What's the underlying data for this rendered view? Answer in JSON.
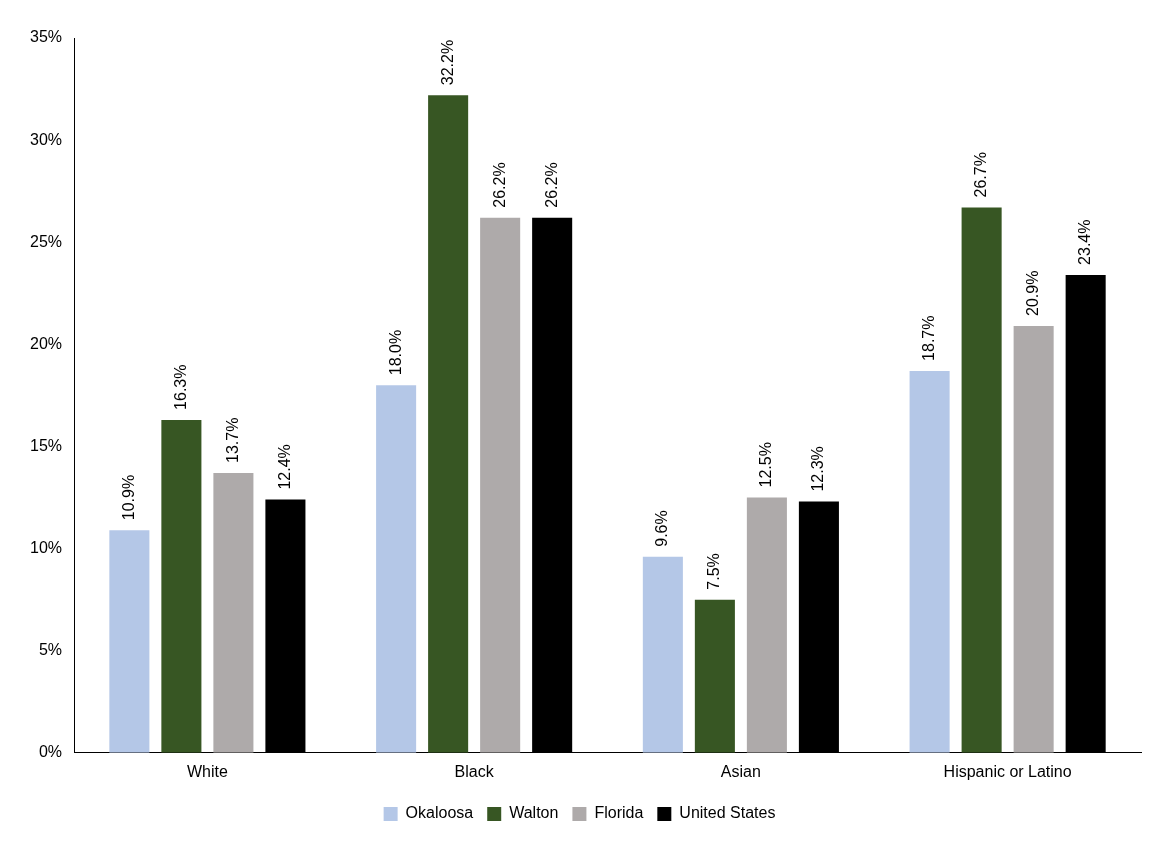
{
  "chart_data": {
    "type": "bar",
    "categories": [
      "White",
      "Black",
      "Asian",
      "Hispanic or Latino"
    ],
    "series": [
      {
        "name": "Okaloosa",
        "color": "#b4c7e7",
        "values": [
          10.9,
          18.0,
          9.6,
          18.7
        ],
        "value_labels": [
          "10.9%",
          "18.0%",
          "9.6%",
          "18.7%"
        ]
      },
      {
        "name": "Walton",
        "color": "#375623",
        "values": [
          16.3,
          32.2,
          7.5,
          26.7
        ],
        "value_labels": [
          "16.3%",
          "32.2%",
          "7.5%",
          "26.7%"
        ]
      },
      {
        "name": "Florida",
        "color": "#aeaaaa",
        "values": [
          13.7,
          26.2,
          12.5,
          20.9
        ],
        "value_labels": [
          "13.7%",
          "26.2%",
          "12.5%",
          "20.9%"
        ]
      },
      {
        "name": "United States",
        "color": "#000000",
        "values": [
          12.4,
          26.2,
          12.3,
          23.4
        ],
        "value_labels": [
          "12.4%",
          "26.2%",
          "12.3%",
          "23.4%"
        ]
      }
    ],
    "ylim": [
      0,
      35
    ],
    "yticks": [
      {
        "value": 0,
        "label": "0%"
      },
      {
        "value": 5,
        "label": "5%"
      },
      {
        "value": 10,
        "label": "10%"
      },
      {
        "value": 15,
        "label": "15%"
      },
      {
        "value": 20,
        "label": "20%"
      },
      {
        "value": 25,
        "label": "25%"
      },
      {
        "value": 30,
        "label": "30%"
      },
      {
        "value": 35,
        "label": "35%"
      }
    ],
    "grid": false,
    "legend": "bottom"
  }
}
